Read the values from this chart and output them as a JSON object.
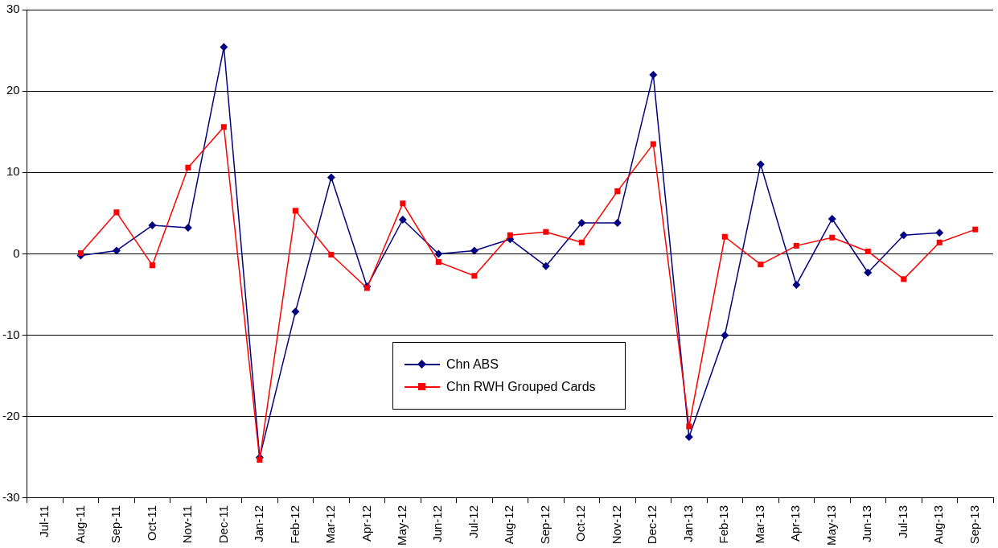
{
  "chart_data": {
    "type": "line",
    "categories": [
      "Jul-11",
      "Aug-11",
      "Sep-11",
      "Oct-11",
      "Nov-11",
      "Dec-11",
      "Jan-12",
      "Feb-12",
      "Mar-12",
      "Apr-12",
      "May-12",
      "Jun-12",
      "Jul-12",
      "Aug-12",
      "Sep-12",
      "Oct-12",
      "Nov-12",
      "Dec-12",
      "Jan-13",
      "Feb-13",
      "Mar-13",
      "Apr-13",
      "May-13",
      "Jun-13",
      "Jul-13",
      "Aug-13",
      "Sep-13"
    ],
    "series": [
      {
        "name": "Chn ABS",
        "color": "#000080",
        "marker": "diamond",
        "values": [
          null,
          -0.2,
          0.4,
          3.5,
          3.2,
          25.4,
          -25.0,
          -7.1,
          9.4,
          -4.0,
          4.2,
          0.0,
          0.4,
          1.8,
          -1.5,
          3.8,
          3.8,
          22.0,
          -22.5,
          -10.0,
          11.0,
          -3.8,
          4.3,
          -2.3,
          2.3,
          2.6,
          null
        ]
      },
      {
        "name": "Chn RWH Grouped Cards",
        "color": "#ff0000",
        "marker": "square",
        "values": [
          null,
          0.1,
          5.1,
          -1.4,
          10.6,
          15.6,
          -25.3,
          5.3,
          -0.1,
          -4.2,
          6.2,
          -1.0,
          -2.7,
          2.3,
          2.7,
          1.4,
          7.7,
          13.5,
          -21.2,
          2.1,
          -1.3,
          1.0,
          2.0,
          0.3,
          -3.1,
          1.4,
          3.0
        ]
      }
    ],
    "ylim": [
      -30,
      30
    ],
    "yticks": [
      -30,
      -20,
      -10,
      0,
      10,
      20,
      30
    ],
    "grid": "y",
    "legend": "bottom",
    "line_style": "solid"
  }
}
